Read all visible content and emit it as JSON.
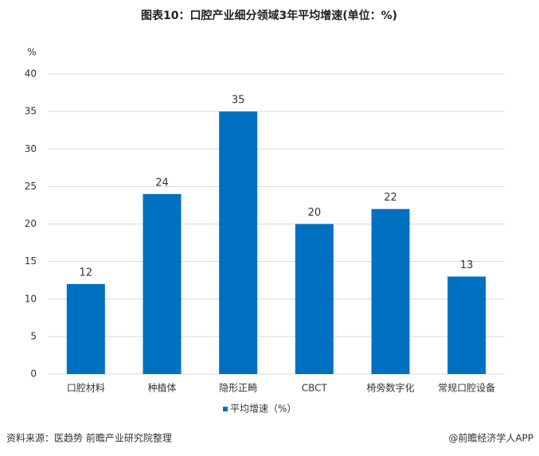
{
  "chart_data": {
    "type": "bar",
    "title": "图表10：口腔产业细分领域3年平均增速(单位：%)",
    "y_unit": "%",
    "categories": [
      "口腔材料",
      "种植体",
      "隐形正畸",
      "CBCT",
      "椅旁数字化",
      "常规口腔设备"
    ],
    "series": [
      {
        "name": "平均增速（%）",
        "color": "#0070c0",
        "values": [
          12,
          24,
          35,
          20,
          22,
          13
        ]
      }
    ],
    "ylim": [
      0,
      40
    ],
    "yticks": [
      0,
      5,
      10,
      15,
      20,
      25,
      30,
      35,
      40
    ],
    "grid": true,
    "legend": "bottom",
    "source": "资料来源：医趋势 前瞻产业研究院整理",
    "brand": "@前瞻经济学人APP"
  }
}
